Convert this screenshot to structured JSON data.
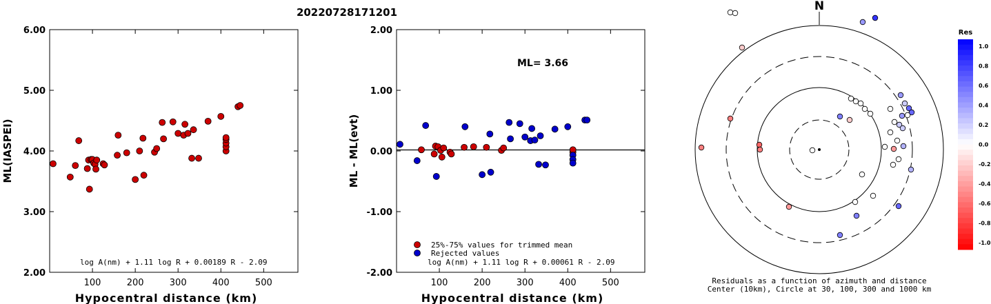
{
  "title": "20220728171201",
  "chart_data": [
    {
      "type": "scatter",
      "xlabel": "Hypocentral distance (km)",
      "ylabel": "ML(IASPEI)",
      "xlim": [
        0,
        580
      ],
      "ylim": [
        2.0,
        6.0
      ],
      "xticks": [
        "100",
        "200",
        "300",
        "400",
        "500"
      ],
      "yticks": [
        "2.00",
        "3.00",
        "4.00",
        "5.00",
        "6.00"
      ],
      "formula": "log A(nm) + 1.11 log R + 0.00189 R - 2.09",
      "series": [
        {
          "color": "#cc0000",
          "points": [
            [
              8,
              3.79
            ],
            [
              48,
              3.57
            ],
            [
              60,
              3.76
            ],
            [
              68,
              4.17
            ],
            [
              88,
              3.71
            ],
            [
              91,
              3.85
            ],
            [
              93,
              3.37
            ],
            [
              97,
              3.86
            ],
            [
              100,
              3.86
            ],
            [
              103,
              3.8
            ],
            [
              106,
              3.78
            ],
            [
              108,
              3.7
            ],
            [
              110,
              3.85
            ],
            [
              125,
              3.79
            ],
            [
              128,
              3.77
            ],
            [
              158,
              3.93
            ],
            [
              160,
              4.26
            ],
            [
              180,
              3.97
            ],
            [
              200,
              3.53
            ],
            [
              210,
              4.0
            ],
            [
              218,
              4.21
            ],
            [
              220,
              3.6
            ],
            [
              245,
              3.98
            ],
            [
              250,
              4.04
            ],
            [
              263,
              4.47
            ],
            [
              266,
              4.2
            ],
            [
              288,
              4.48
            ],
            [
              300,
              4.29
            ],
            [
              313,
              4.26
            ],
            [
              316,
              4.44
            ],
            [
              323,
              4.29
            ],
            [
              332,
              3.88
            ],
            [
              336,
              4.35
            ],
            [
              348,
              3.88
            ],
            [
              370,
              4.49
            ],
            [
              400,
              4.57
            ],
            [
              412,
              4.0
            ],
            [
              412,
              4.07
            ],
            [
              412,
              4.13
            ],
            [
              412,
              4.19
            ],
            [
              412,
              4.22
            ],
            [
              440,
              4.73
            ],
            [
              445,
              4.75
            ]
          ]
        }
      ]
    },
    {
      "type": "scatter",
      "xlabel": "Hypocentral distance (km)",
      "ylabel": "ML - ML(evt)",
      "xlim": [
        0,
        580
      ],
      "ylim": [
        -2.0,
        2.0
      ],
      "xticks": [
        "100",
        "200",
        "300",
        "400",
        "500"
      ],
      "yticks": [
        "-2.00",
        "-1.00",
        "0.00",
        "1.00",
        "2.00"
      ],
      "reference_line": 0.0,
      "annotation": "ML= 3.66",
      "formula": "log A(nm) + 1.11 log R + 0.00061 R - 2.09",
      "legend": [
        "25%-75% values for trimmed mean",
        "Rejected values"
      ],
      "series": [
        {
          "name": "25%-75% values for trimmed mean",
          "color": "#cc0000",
          "points": [
            [
              58,
              0.02
            ],
            [
              88,
              -0.05
            ],
            [
              91,
              0.08
            ],
            [
              97,
              0.07
            ],
            [
              103,
              0.01
            ],
            [
              106,
              -0.1
            ],
            [
              110,
              0.05
            ],
            [
              125,
              -0.02
            ],
            [
              128,
              -0.05
            ],
            [
              158,
              0.06
            ],
            [
              180,
              0.07
            ],
            [
              210,
              0.06
            ],
            [
              245,
              0.01
            ],
            [
              250,
              0.05
            ],
            [
              412,
              -0.02
            ],
            [
              412,
              0.02
            ]
          ]
        },
        {
          "name": "Rejected values",
          "color": "#0000cc",
          "points": [
            [
              8,
              0.11
            ],
            [
              48,
              -0.16
            ],
            [
              68,
              0.42
            ],
            [
              93,
              -0.42
            ],
            [
              160,
              0.4
            ],
            [
              200,
              -0.39
            ],
            [
              218,
              0.28
            ],
            [
              220,
              -0.35
            ],
            [
              263,
              0.47
            ],
            [
              266,
              0.2
            ],
            [
              288,
              0.45
            ],
            [
              300,
              0.23
            ],
            [
              313,
              0.17
            ],
            [
              316,
              0.37
            ],
            [
              323,
              0.18
            ],
            [
              332,
              -0.22
            ],
            [
              336,
              0.25
            ],
            [
              348,
              -0.23
            ],
            [
              370,
              0.36
            ],
            [
              400,
              0.4
            ],
            [
              412,
              -0.07
            ],
            [
              412,
              -0.14
            ],
            [
              412,
              -0.2
            ],
            [
              440,
              0.51
            ],
            [
              445,
              0.51
            ]
          ]
        }
      ]
    },
    {
      "type": "scatter",
      "subtype": "polar",
      "north_label": "N",
      "caption": [
        "Residuals as a function of azimuth and distance",
        "Center (10km), Circle at 30, 100, 300 and 1000 km"
      ],
      "rings_km": [
        30,
        100,
        300,
        1000
      ],
      "colorbar": {
        "title": "Res",
        "labels": [
          "1.0",
          "0.8",
          "0.6",
          "0.4",
          "0.2",
          "0.0",
          "-0.2",
          "-0.4",
          "-0.6",
          "-0.8",
          "-1.0"
        ]
      },
      "stations": [
        {
          "dx": -129,
          "dy": -199,
          "res": 0.0
        },
        {
          "dx": -122,
          "dy": -198,
          "res": 0.0
        },
        {
          "dx": -112,
          "dy": -148,
          "res": -0.2
        },
        {
          "dx": 63,
          "dy": -185,
          "res": 0.4
        },
        {
          "dx": 81,
          "dy": -191,
          "res": 0.8
        },
        {
          "dx": 46,
          "dy": -74,
          "res": 0.0
        },
        {
          "dx": 53,
          "dy": -70,
          "res": 0.0
        },
        {
          "dx": 60,
          "dy": -67,
          "res": 0.0
        },
        {
          "dx": 66,
          "dy": -59,
          "res": 0.0
        },
        {
          "dx": 74,
          "dy": -52,
          "res": 0.0
        },
        {
          "dx": 30,
          "dy": -48,
          "res": 0.5
        },
        {
          "dx": 44,
          "dy": -43,
          "res": -0.2
        },
        {
          "dx": 118,
          "dy": -79,
          "res": 0.4
        },
        {
          "dx": 124,
          "dy": -67,
          "res": 0.2
        },
        {
          "dx": 130,
          "dy": -60,
          "res": 0.6
        },
        {
          "dx": 134,
          "dy": -54,
          "res": 0.6
        },
        {
          "dx": 128,
          "dy": -50,
          "res": 0.0
        },
        {
          "dx": 120,
          "dy": -49,
          "res": 0.4
        },
        {
          "dx": 103,
          "dy": -59,
          "res": 0.0
        },
        {
          "dx": 109,
          "dy": -40,
          "res": 0.0
        },
        {
          "dx": 116,
          "dy": -36,
          "res": 0.2
        },
        {
          "dx": 121,
          "dy": -31,
          "res": 0.2
        },
        {
          "dx": 103,
          "dy": -25,
          "res": 0.0
        },
        {
          "dx": 113,
          "dy": -13,
          "res": 0.0
        },
        {
          "dx": 108,
          "dy": -1,
          "res": -0.4
        },
        {
          "dx": 122,
          "dy": -5,
          "res": 0.3
        },
        {
          "dx": 95,
          "dy": -4,
          "res": 0.0
        },
        {
          "dx": 115,
          "dy": 14,
          "res": 0.0
        },
        {
          "dx": 107,
          "dy": 22,
          "res": 0.0
        },
        {
          "dx": 133,
          "dy": 29,
          "res": 0.3
        },
        {
          "dx": 62,
          "dy": 36,
          "res": 0.0
        },
        {
          "dx": 78,
          "dy": 67,
          "res": 0.0
        },
        {
          "dx": 52,
          "dy": 76,
          "res": 0.0
        },
        {
          "dx": 54,
          "dy": 96,
          "res": 0.5
        },
        {
          "dx": 115,
          "dy": 82,
          "res": 0.6
        },
        {
          "dx": 30,
          "dy": 124,
          "res": 0.5
        },
        {
          "dx": -129,
          "dy": -45,
          "res": -0.5
        },
        {
          "dx": -87,
          "dy": -7,
          "res": -0.6
        },
        {
          "dx": -86,
          "dy": 0,
          "res": -0.5
        },
        {
          "dx": -171,
          "dy": -3,
          "res": -0.5
        },
        {
          "dx": -44,
          "dy": 83,
          "res": -0.4
        },
        {
          "dx": -10,
          "dy": 1,
          "res": 0.0
        }
      ]
    }
  ]
}
